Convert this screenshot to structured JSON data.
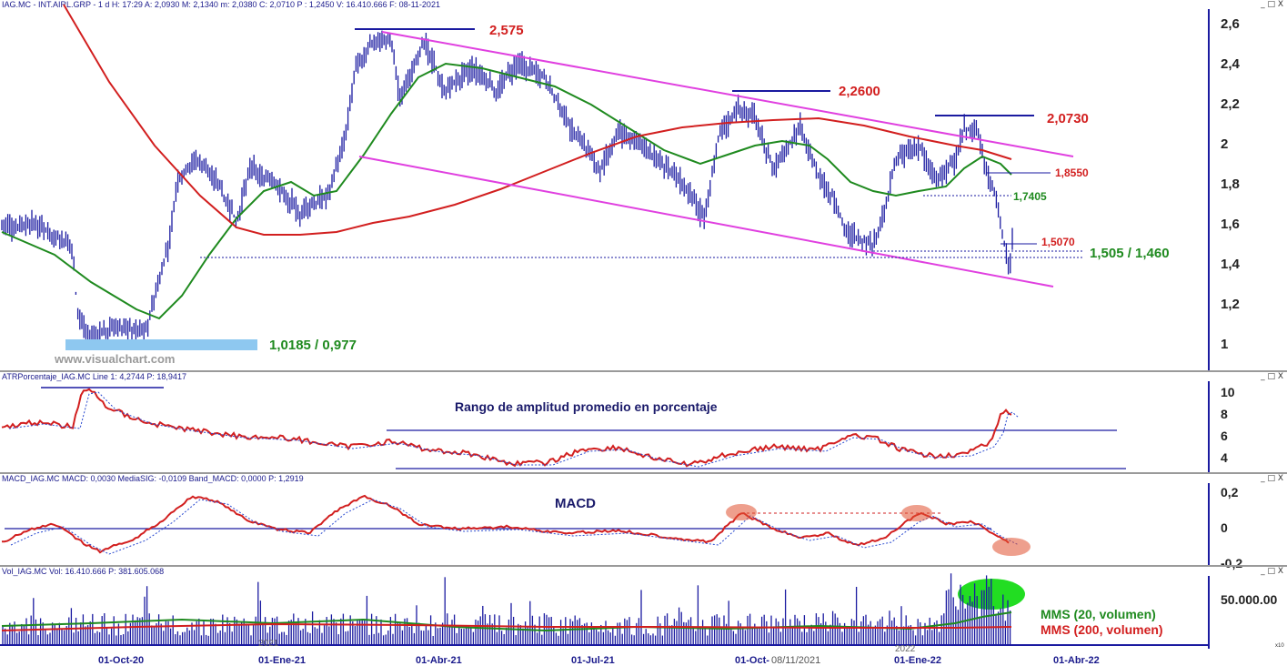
{
  "main": {
    "header": "IAG.MC - INT.AIRL.GRP - 1 d H: 17:29 A: 2,0930 M: 2,1340 m: 2,0380 C: 2,0710 P : 1,2450 V: 16.410.666 F: 08-11-2021",
    "yticks": [
      "2,6",
      "2,4",
      "2,2",
      "2",
      "1,8",
      "1,6",
      "1,4",
      "1,2",
      "1"
    ],
    "label_2575": "2,575",
    "label_22600": "2,2600",
    "label_20730": "2,0730",
    "label_18550": "1,8550",
    "label_17405": "1,7405",
    "label_15070": "1,5070",
    "label_support": "1,505 / 1,460",
    "label_low": "1,0185 / 0,977",
    "watermark": "www.visualchart.com"
  },
  "atr": {
    "header": "ATRPorcentaje_IAG.MC Line 1: 4,2744 P: 18,9417",
    "title": "Rango de amplitud promedio en porcentaje",
    "yticks": [
      "10",
      "8",
      "6",
      "4"
    ]
  },
  "macd": {
    "header": "MACD_IAG.MC MACD: 0,0030 MediaSIG: -0,0109 Band_MACD: 0,0000 P: 1,2919",
    "title": "MACD",
    "yticks": [
      "0,2",
      "0",
      "-0,2"
    ]
  },
  "vol": {
    "header": "Vol_IAG.MC Vol: 16.410.666 P: 381.605.068",
    "ytick": "50.000.00",
    "legend_20": "MMS (20, volumen)",
    "legend_200": "MMS (200, volumen)",
    "corner": "x10"
  },
  "xaxis": {
    "labels": [
      "01-Oct-20",
      "01-Ene-21",
      "01-Abr-21",
      "01-Jul-21",
      "01-Oct-",
      "08/11/2021",
      "01-Ene-22",
      "01-Abr-22"
    ],
    "year_marks": [
      "2021",
      "2022"
    ]
  },
  "window_controls": "_ □ X",
  "colors": {
    "price": "#1a1aa0",
    "ma_short": "#1f8a1f",
    "ma_long": "#d21f1f",
    "channel": "#e040e0",
    "level": "#1a1aa0",
    "support_fill": "#8ec8f0",
    "highlight": "#e05030",
    "volume_ellipse": "#22dd22"
  },
  "chart_data": [
    {
      "type": "line",
      "name": "price",
      "x": [
        "01-Oct-20",
        "01-Ene-21",
        "01-Abr-21",
        "01-Jul-21",
        "01-Oct-",
        "01-Ene-22",
        "01-Abr-22"
      ],
      "ylim": [
        0.95,
        2.62
      ],
      "series": [
        {
          "name": "",
          "values": [
            1.05,
            1.72,
            2.45,
            2.1,
            1.95,
            1.95,
            1.55
          ]
        }
      ],
      "annotations": [
        "2,575",
        "2,2600",
        "2,0730",
        "1,8550",
        "1,7405",
        "1,5070",
        "1,505 / 1,460",
        "1,0185 / 0,977"
      ]
    },
    {
      "type": "line",
      "name": "atr",
      "title": "Rango de amplitud promedio en porcentaje",
      "ylim": [
        3,
        10.5
      ]
    },
    {
      "type": "line",
      "name": "macd",
      "title": "MACD",
      "ylim": [
        -0.22,
        0.22
      ]
    },
    {
      "type": "bar",
      "name": "volume",
      "series": [
        {
          "name": "MMS (20, volumen)"
        },
        {
          "name": "MMS (200, volumen)"
        }
      ]
    }
  ]
}
